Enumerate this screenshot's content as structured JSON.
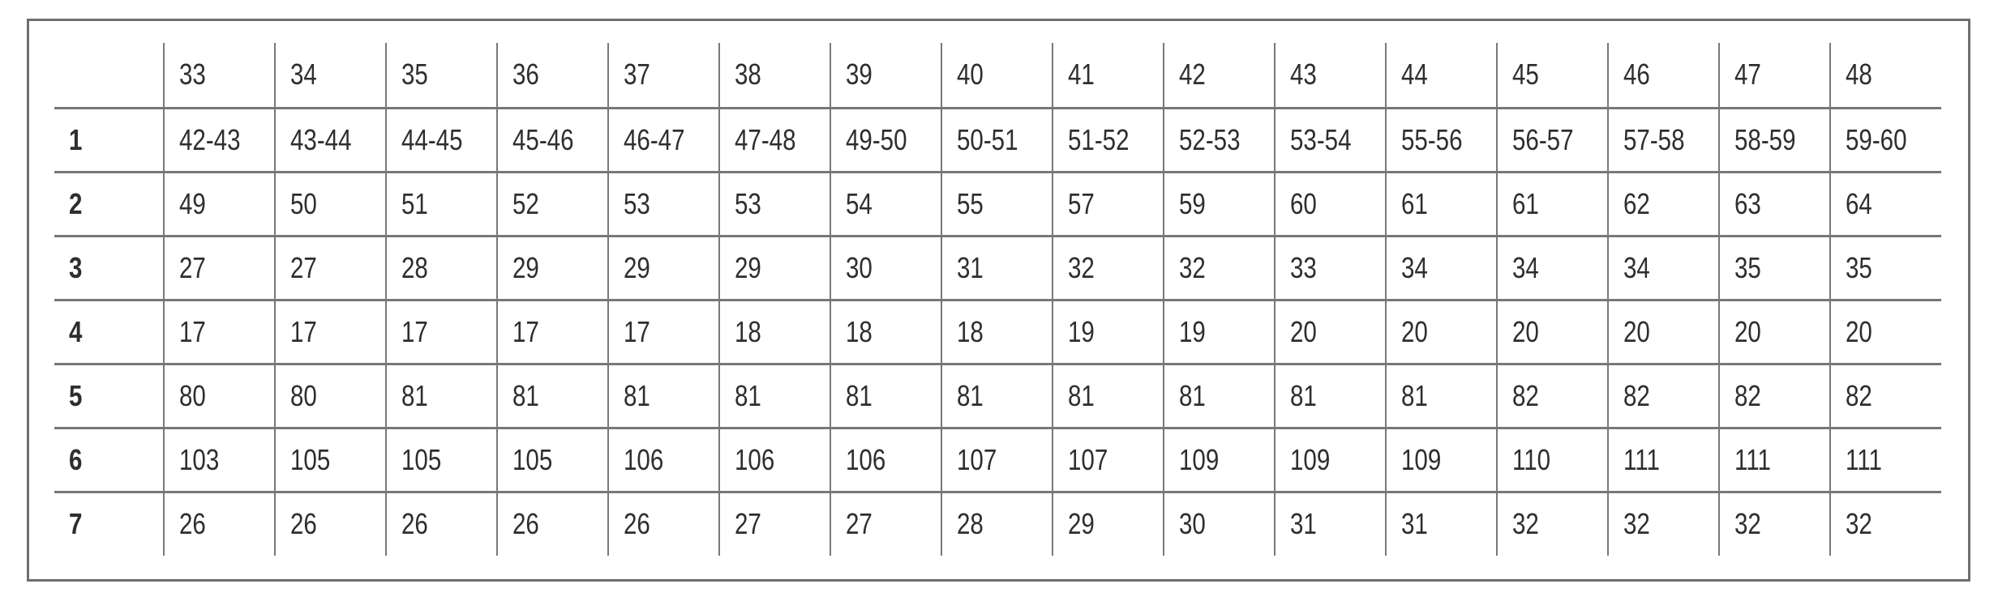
{
  "chart_data": {
    "type": "table",
    "corner_label": "",
    "columns": [
      "33",
      "34",
      "35",
      "36",
      "37",
      "38",
      "39",
      "40",
      "41",
      "42",
      "43",
      "44",
      "45",
      "46",
      "47",
      "48"
    ],
    "rows": [
      {
        "label": "1",
        "values": [
          "42-43",
          "43-44",
          "44-45",
          "45-46",
          "46-47",
          "47-48",
          "49-50",
          "50-51",
          "51-52",
          "52-53",
          "53-54",
          "55-56",
          "56-57",
          "57-58",
          "58-59",
          "59-60"
        ]
      },
      {
        "label": "2",
        "values": [
          "49",
          "50",
          "51",
          "52",
          "53",
          "53",
          "54",
          "55",
          "57",
          "59",
          "60",
          "61",
          "61",
          "62",
          "63",
          "64"
        ]
      },
      {
        "label": "3",
        "values": [
          "27",
          "27",
          "28",
          "29",
          "29",
          "29",
          "30",
          "31",
          "32",
          "32",
          "33",
          "34",
          "34",
          "34",
          "35",
          "35"
        ]
      },
      {
        "label": "4",
        "values": [
          "17",
          "17",
          "17",
          "17",
          "17",
          "18",
          "18",
          "18",
          "19",
          "19",
          "20",
          "20",
          "20",
          "20",
          "20",
          "20"
        ]
      },
      {
        "label": "5",
        "values": [
          "80",
          "80",
          "81",
          "81",
          "81",
          "81",
          "81",
          "81",
          "81",
          "81",
          "81",
          "81",
          "82",
          "82",
          "82",
          "82"
        ]
      },
      {
        "label": "6",
        "values": [
          "103",
          "105",
          "105",
          "105",
          "106",
          "106",
          "106",
          "107",
          "107",
          "109",
          "109",
          "109",
          "110",
          "111",
          "111",
          "111"
        ]
      },
      {
        "label": "7",
        "values": [
          "26",
          "26",
          "26",
          "26",
          "26",
          "27",
          "27",
          "28",
          "29",
          "30",
          "31",
          "31",
          "32",
          "32",
          "32",
          "32"
        ]
      }
    ],
    "layout": {
      "grid": "vertical separators between all 17 columns, horizontal separators between all rows, no outer table border, no border above header or below last row",
      "legend": "none",
      "title": "none visible"
    },
    "colors": {
      "frame_border": "#6e6e6e",
      "grid_line": "#787878",
      "text": "#2e2e2e",
      "background": "#ffffff"
    }
  }
}
